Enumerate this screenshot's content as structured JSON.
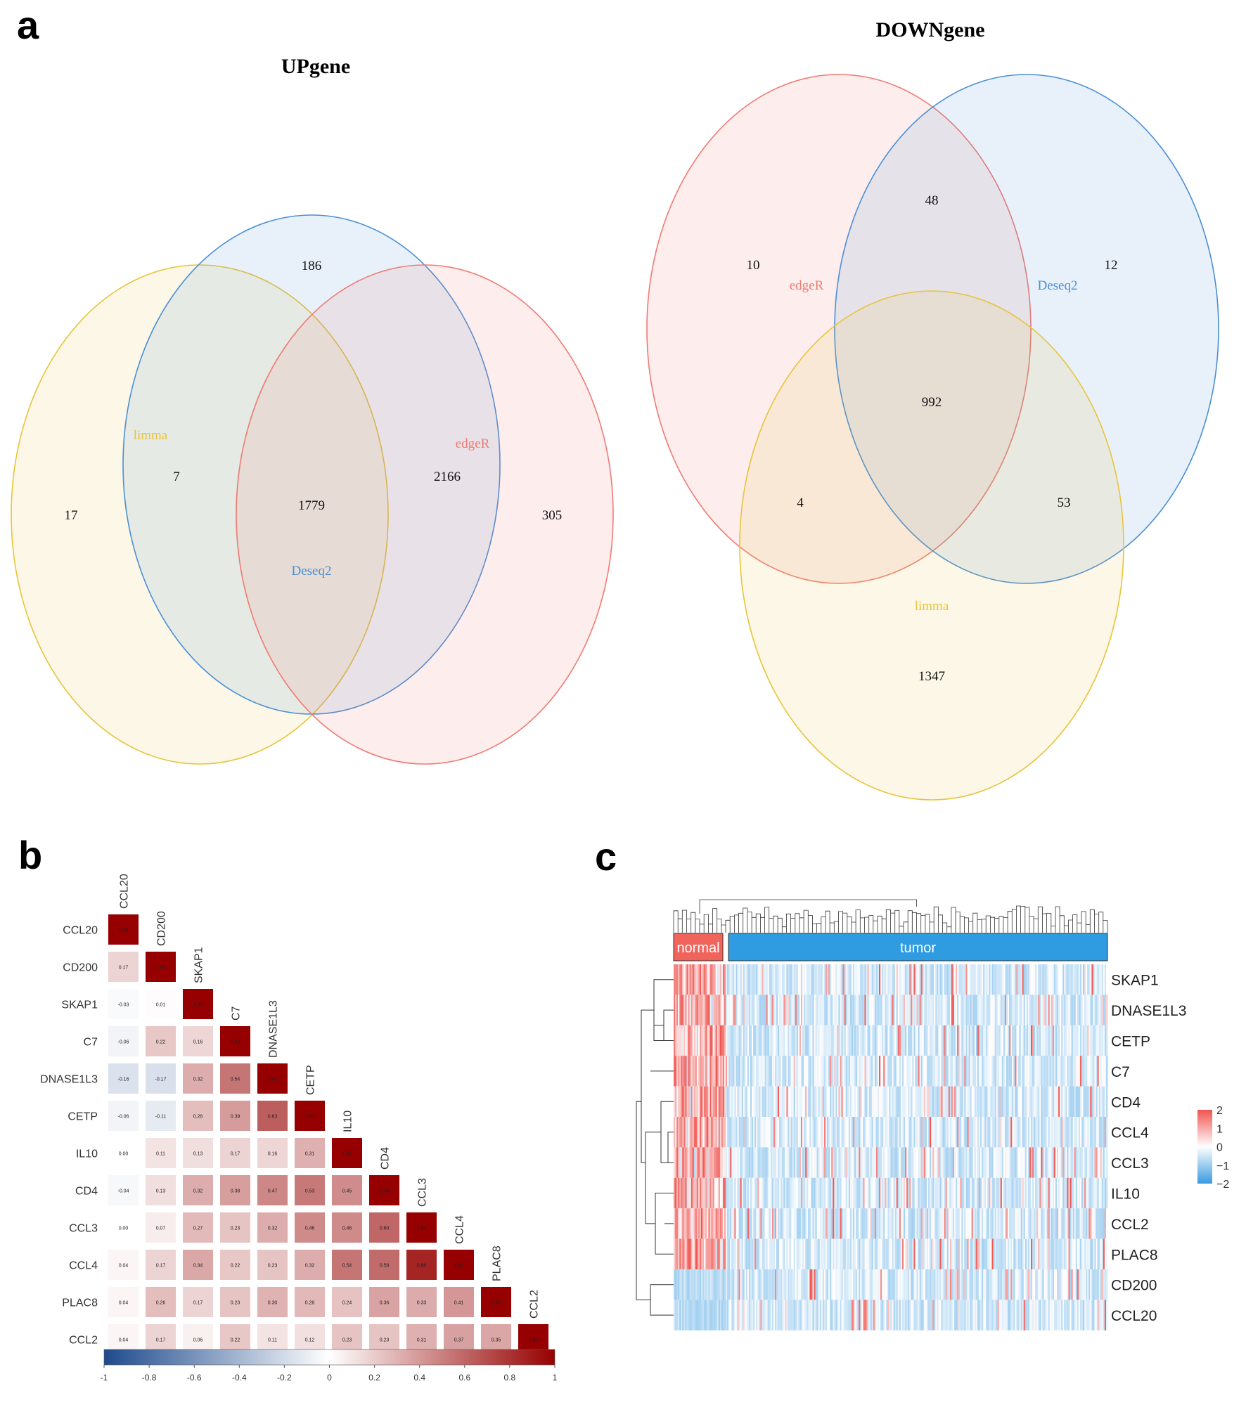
{
  "panel_labels": {
    "a": "a",
    "b": "b",
    "c": "c"
  },
  "chart_data": [
    {
      "type": "venn",
      "title": "UPgene",
      "sets": [
        {
          "name": "limma",
          "color": "#e8c43a"
        },
        {
          "name": "Deseq2",
          "color": "#4a8fd6"
        },
        {
          "name": "edgeR",
          "color": "#f07a72"
        }
      ],
      "regions": [
        {
          "sets": [
            "limma"
          ],
          "value": 17
        },
        {
          "sets": [
            "Deseq2"
          ],
          "value": 186
        },
        {
          "sets": [
            "edgeR"
          ],
          "value": 305
        },
        {
          "sets": [
            "limma",
            "Deseq2"
          ],
          "value": 7
        },
        {
          "sets": [
            "Deseq2",
            "edgeR"
          ],
          "value": 2166
        },
        {
          "sets": [
            "limma",
            "Deseq2",
            "edgeR"
          ],
          "value": 1779
        }
      ]
    },
    {
      "type": "venn",
      "title": "DOWNgene",
      "sets": [
        {
          "name": "edgeR",
          "color": "#f07a72"
        },
        {
          "name": "Deseq2",
          "color": "#4a8fd6"
        },
        {
          "name": "limma",
          "color": "#e8c43a"
        }
      ],
      "regions": [
        {
          "sets": [
            "edgeR"
          ],
          "value": 10
        },
        {
          "sets": [
            "Deseq2"
          ],
          "value": 12
        },
        {
          "sets": [
            "limma"
          ],
          "value": 1347
        },
        {
          "sets": [
            "edgeR",
            "Deseq2"
          ],
          "value": 48
        },
        {
          "sets": [
            "edgeR",
            "limma"
          ],
          "value": 4
        },
        {
          "sets": [
            "Deseq2",
            "limma"
          ],
          "value": 53
        },
        {
          "sets": [
            "edgeR",
            "Deseq2",
            "limma"
          ],
          "value": 992
        }
      ]
    },
    {
      "type": "heatmap",
      "subtype": "correlation-lower-triangle",
      "genes": [
        "CCL20",
        "CD200",
        "SKAP1",
        "C7",
        "DNASE1L3",
        "CETP",
        "IL10",
        "CD4",
        "CCL3",
        "CCL4",
        "PLAC8",
        "CCL2"
      ],
      "lower_triangle": [
        [
          1.0
        ],
        [
          0.17,
          1.0
        ],
        [
          -0.03,
          0.01,
          1.0
        ],
        [
          -0.06,
          0.22,
          0.16,
          1.0
        ],
        [
          -0.16,
          -0.17,
          0.32,
          0.54,
          1.0
        ],
        [
          -0.06,
          -0.11,
          0.26,
          0.39,
          0.63,
          1.0
        ],
        [
          0.0,
          0.11,
          0.13,
          0.17,
          0.16,
          0.31,
          1.0
        ],
        [
          -0.04,
          0.13,
          0.32,
          0.38,
          0.47,
          0.53,
          0.45,
          1.0
        ],
        [
          0.0,
          0.07,
          0.27,
          0.23,
          0.32,
          0.46,
          0.46,
          0.6,
          1.0
        ],
        [
          0.04,
          0.17,
          0.34,
          0.22,
          0.23,
          0.32,
          0.54,
          0.58,
          0.86,
          1.0
        ],
        [
          0.04,
          0.26,
          0.17,
          0.23,
          0.3,
          0.28,
          0.24,
          0.36,
          0.33,
          0.41,
          1.0
        ],
        [
          0.04,
          0.17,
          0.06,
          0.22,
          0.11,
          0.12,
          0.23,
          0.23,
          0.31,
          0.37,
          0.35,
          1.0
        ]
      ],
      "colorbar": {
        "range": [
          -1,
          1
        ],
        "ticks": [
          "-1",
          "-0.8",
          "-0.6",
          "-0.4",
          "-0.2",
          "0",
          "0.2",
          "0.4",
          "0.6",
          "0.8",
          "1"
        ],
        "low_color": "#1e4a8c",
        "mid_color": "#ffffff",
        "high_color": "#960000"
      }
    },
    {
      "type": "heatmap",
      "subtype": "clustered-expression",
      "rows": [
        "SKAP1",
        "DNASE1L3",
        "CETP",
        "C7",
        "CD4",
        "CCL4",
        "CCL3",
        "IL10",
        "CCL2",
        "PLAC8",
        "CD200",
        "CCL20"
      ],
      "groups": [
        {
          "name": "normal",
          "color": "#f0645c"
        },
        {
          "name": "tumor",
          "color": "#2f9be0"
        }
      ],
      "legend": {
        "ticks": [
          "2",
          "1",
          "0",
          "−1",
          "−2"
        ],
        "range": [
          -2,
          2
        ],
        "low_color": "#3a9ae0",
        "mid_color": "#ffffff",
        "high_color": "#f0544f"
      }
    }
  ]
}
